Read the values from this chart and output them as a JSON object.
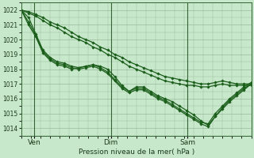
{
  "xlabel": "Pression niveau de la mer( hPa )",
  "background_color": "#c8e8cc",
  "grid_color": "#99bb99",
  "line_color": "#1a5e1a",
  "ylim": [
    1013.5,
    1022.5
  ],
  "yticks": [
    1014,
    1015,
    1016,
    1017,
    1018,
    1019,
    1020,
    1021,
    1022
  ],
  "xlim": [
    0,
    144
  ],
  "xtick_positions": [
    8,
    56,
    104
  ],
  "xtick_labels": [
    "Ven",
    "Dim",
    "Sam"
  ],
  "vline_positions": [
    8,
    56,
    104
  ],
  "total_hours": 144,
  "series_dip": [
    [
      1022.0,
      1021.0,
      1020.2,
      1019.1,
      1018.6,
      1018.3,
      1018.2,
      1018.0,
      1018.1,
      1018.2,
      1018.3,
      1018.2,
      1018.0,
      1017.5,
      1016.9,
      1016.5,
      1016.8,
      1016.8,
      1016.5,
      1016.2,
      1016.0,
      1015.8,
      1015.5,
      1015.2,
      1014.9,
      1014.5,
      1014.2,
      1014.8,
      1015.3,
      1015.8,
      1016.2,
      1016.6,
      1017.0
    ],
    [
      1022.0,
      1021.2,
      1020.3,
      1019.2,
      1018.7,
      1018.4,
      1018.3,
      1018.1,
      1018.0,
      1018.1,
      1018.2,
      1018.0,
      1017.7,
      1017.2,
      1016.7,
      1016.4,
      1016.6,
      1016.6,
      1016.3,
      1016.0,
      1015.8,
      1015.5,
      1015.2,
      1014.9,
      1014.6,
      1014.3,
      1014.1,
      1014.8,
      1015.4,
      1015.9,
      1016.3,
      1016.7,
      1017.0
    ],
    [
      1022.0,
      1021.5,
      1020.4,
      1019.3,
      1018.8,
      1018.5,
      1018.4,
      1018.2,
      1018.1,
      1018.2,
      1018.3,
      1018.1,
      1017.8,
      1017.3,
      1016.8,
      1016.5,
      1016.7,
      1016.7,
      1016.4,
      1016.1,
      1015.9,
      1015.6,
      1015.3,
      1015.0,
      1014.7,
      1014.4,
      1014.3,
      1015.0,
      1015.5,
      1016.0,
      1016.4,
      1016.8,
      1017.1
    ]
  ],
  "series_straight": [
    [
      1022.0,
      1021.9,
      1021.7,
      1021.5,
      1021.2,
      1021.0,
      1020.8,
      1020.5,
      1020.2,
      1020.0,
      1019.8,
      1019.5,
      1019.3,
      1019.0,
      1018.8,
      1018.5,
      1018.3,
      1018.1,
      1017.9,
      1017.7,
      1017.5,
      1017.4,
      1017.3,
      1017.2,
      1017.1,
      1017.0,
      1017.0,
      1017.1,
      1017.2,
      1017.1,
      1017.0,
      1017.0,
      1017.0
    ],
    [
      1022.0,
      1021.8,
      1021.6,
      1021.3,
      1021.0,
      1020.8,
      1020.5,
      1020.2,
      1020.0,
      1019.8,
      1019.5,
      1019.3,
      1019.0,
      1018.8,
      1018.5,
      1018.2,
      1018.0,
      1017.8,
      1017.6,
      1017.4,
      1017.2,
      1017.1,
      1017.0,
      1016.9,
      1016.9,
      1016.8,
      1016.8,
      1016.9,
      1017.0,
      1016.9,
      1016.9,
      1016.9,
      1016.9
    ]
  ]
}
